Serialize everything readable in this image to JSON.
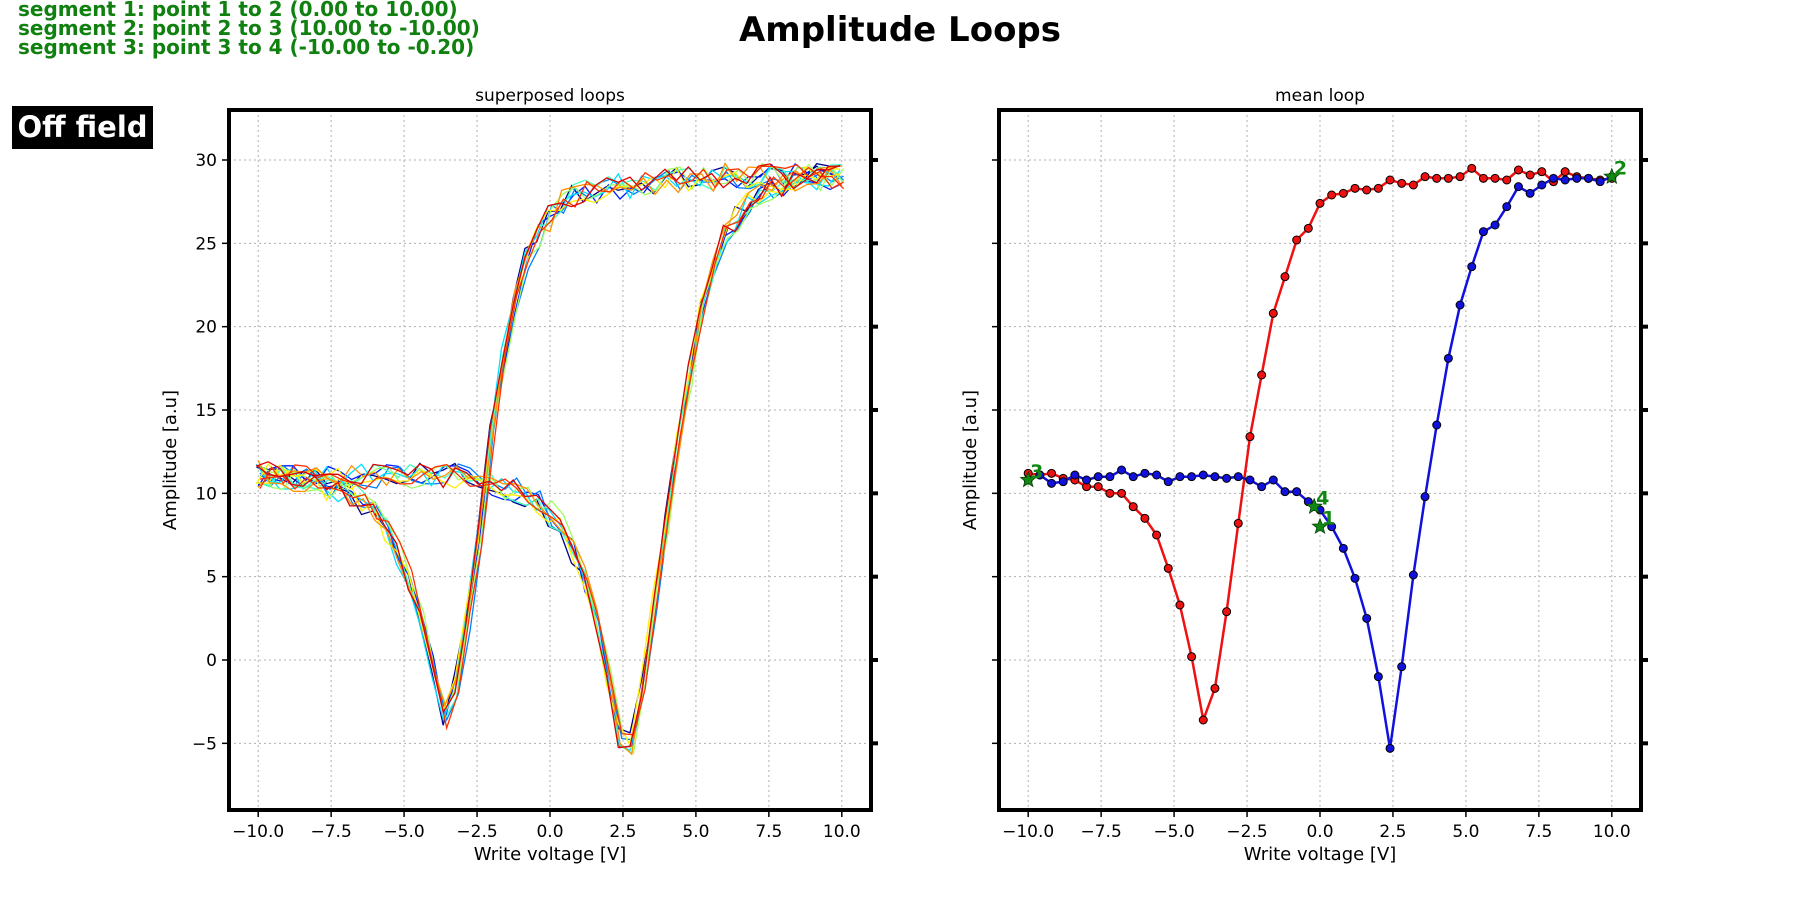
{
  "suptitle": "Amplitude Loops",
  "mode_badge": "Off field",
  "segments": [
    "segment 1: point 1 to 2 (0.00 to 10.00)",
    "segment 2: point 2 to 3 (10.00 to -10.00)",
    "segment 3: point 3 to 4 (-10.00 to -0.20)"
  ],
  "colors": {
    "text_green": "#108010",
    "red_branch": "#ee1111",
    "blue_branch": "#1111dd",
    "marker_green": "#118811",
    "grid": "#b0b0b0"
  },
  "chart_data": [
    {
      "type": "line",
      "title": "superposed loops",
      "xlabel": "Write voltage [V]",
      "ylabel": "Amplitude [a.u]",
      "xlim": [
        -11.0,
        11.0
      ],
      "ylim": [
        -9.0,
        33.0
      ],
      "xticks": [
        -10.0,
        -7.5,
        -5.0,
        -2.5,
        0.0,
        2.5,
        5.0,
        7.5,
        10.0
      ],
      "xtick_labels": [
        "−10.0",
        "−7.5",
        "−5.0",
        "−2.5",
        "0.0",
        "2.5",
        "5.0",
        "7.5",
        "10.0"
      ],
      "yticks": [
        -5,
        0,
        5,
        10,
        15,
        20,
        25,
        30
      ],
      "ytick_labels": [
        "−5",
        "0",
        "5",
        "10",
        "15",
        "20",
        "25",
        "30"
      ],
      "grid": true,
      "loop_colors": [
        "#00008f",
        "#0020ff",
        "#0080ff",
        "#00dfff",
        "#40ffbf",
        "#9fff60",
        "#ffef00",
        "#ff9000",
        "#ff3000",
        "#df0000"
      ],
      "base_branches": [
        {
          "name": "",
          "x": [
            -10.0,
            -9.6,
            -9.2,
            -8.8,
            -8.4,
            -8.0,
            -7.6,
            -7.2,
            -6.8,
            -6.4,
            -6.0,
            -5.6,
            -5.2,
            -4.8,
            -4.4,
            -4.0,
            -3.6,
            -3.2,
            -2.8,
            -2.4,
            -2.0,
            -1.6,
            -1.2,
            -0.8,
            -0.4,
            0.0,
            0.4,
            0.8,
            1.2,
            1.6,
            2.0,
            2.4,
            2.8,
            3.2,
            3.6,
            4.0,
            4.4,
            4.8,
            5.2,
            5.6,
            6.0,
            6.4,
            6.8,
            7.2,
            7.6,
            8.0,
            8.4,
            8.8,
            9.2,
            9.6,
            10.0
          ],
          "y": [
            11.2,
            11.1,
            11.0,
            10.9,
            10.8,
            10.6,
            10.3,
            10.3,
            10.0,
            9.5,
            8.8,
            7.8,
            6.5,
            4.6,
            2.4,
            -0.5,
            -3.5,
            -1.5,
            2.5,
            7.5,
            13.5,
            18.0,
            21.5,
            24.0,
            25.5,
            26.5,
            27.5,
            27.8,
            28.0,
            28.2,
            28.3,
            28.4,
            28.5,
            28.5,
            28.6,
            28.7,
            28.8,
            28.8,
            28.9,
            28.9,
            29.0,
            29.0,
            29.0,
            29.0,
            29.0,
            29.0,
            29.0,
            29.0,
            29.0,
            29.0,
            29.0
          ]
        },
        {
          "name": "",
          "x": [
            10.0,
            9.6,
            9.2,
            8.8,
            8.4,
            8.0,
            7.6,
            7.2,
            6.8,
            6.4,
            6.0,
            5.6,
            5.2,
            4.8,
            4.4,
            4.0,
            3.6,
            3.2,
            2.8,
            2.4,
            2.0,
            1.6,
            1.2,
            0.8,
            0.4,
            0.0,
            -0.4,
            -0.8,
            -1.2,
            -1.6,
            -2.0,
            -2.4,
            -2.8,
            -3.2,
            -3.6,
            -4.0,
            -4.4,
            -4.8,
            -5.2,
            -5.6,
            -6.0,
            -6.4,
            -6.8,
            -7.2,
            -7.6,
            -8.0,
            -8.4,
            -8.8,
            -9.2,
            -9.6,
            -10.0
          ],
          "y": [
            29.0,
            29.0,
            28.9,
            28.9,
            28.8,
            28.6,
            28.4,
            28.0,
            27.5,
            26.5,
            25.5,
            23.5,
            21.0,
            17.0,
            13.0,
            8.5,
            3.5,
            -1.5,
            -5.0,
            -4.5,
            -1.0,
            2.5,
            4.8,
            6.5,
            8.0,
            8.8,
            9.5,
            10.0,
            10.2,
            10.4,
            10.6,
            10.8,
            10.9,
            11.0,
            11.0,
            11.0,
            11.0,
            11.0,
            11.0,
            11.0,
            11.0,
            11.0,
            11.0,
            11.0,
            11.0,
            11.0,
            11.0,
            11.0,
            11.0,
            11.0,
            11.0
          ]
        }
      ]
    },
    {
      "type": "line",
      "title": "mean loop",
      "xlabel": "Write voltage [V]",
      "ylabel": "Amplitude [a.u]",
      "xlim": [
        -11.0,
        11.0
      ],
      "ylim": [
        -9.0,
        33.0
      ],
      "xticks": [
        -10.0,
        -7.5,
        -5.0,
        -2.5,
        0.0,
        2.5,
        5.0,
        7.5,
        10.0
      ],
      "xtick_labels": [
        "−10.0",
        "−7.5",
        "−5.0",
        "−2.5",
        "0.0",
        "2.5",
        "5.0",
        "7.5",
        "10.0"
      ],
      "yticks": [
        -5,
        0,
        5,
        10,
        15,
        20,
        25,
        30
      ],
      "grid": true,
      "series": [
        {
          "name": "",
          "color": "#ee1111",
          "x": [
            -10.0,
            -9.6,
            -9.2,
            -8.8,
            -8.4,
            -8.0,
            -7.6,
            -7.2,
            -6.8,
            -6.4,
            -6.0,
            -5.6,
            -5.2,
            -4.8,
            -4.4,
            -4.0,
            -3.6,
            -3.2,
            -2.8,
            -2.4,
            -2.0,
            -1.6,
            -1.2,
            -0.8,
            -0.4,
            0.0,
            0.4,
            0.8,
            1.2,
            1.6,
            2.0,
            2.4,
            2.8,
            3.2,
            3.6,
            4.0,
            4.4,
            4.8,
            5.2,
            5.6,
            6.0,
            6.4,
            6.8,
            7.2,
            7.6,
            8.0,
            8.4,
            8.8,
            9.2,
            9.6,
            10.0
          ],
          "y": [
            11.2,
            11.1,
            11.2,
            10.9,
            10.8,
            10.4,
            10.4,
            10.0,
            10.0,
            9.2,
            8.5,
            7.5,
            5.5,
            3.3,
            0.2,
            -3.6,
            -1.7,
            2.9,
            8.2,
            13.4,
            17.1,
            20.8,
            23.0,
            25.2,
            25.9,
            27.4,
            27.9,
            28.0,
            28.3,
            28.2,
            28.3,
            28.8,
            28.6,
            28.5,
            29.0,
            28.9,
            28.9,
            29.0,
            29.5,
            28.9,
            28.9,
            28.8,
            29.4,
            29.1,
            29.3,
            28.7,
            29.3,
            29.0,
            28.9,
            28.8,
            28.9
          ]
        },
        {
          "name": "",
          "color": "#1111dd",
          "x": [
            10.0,
            9.6,
            9.2,
            8.8,
            8.4,
            8.0,
            7.6,
            7.2,
            6.8,
            6.4,
            6.0,
            5.6,
            5.2,
            4.8,
            4.4,
            4.0,
            3.6,
            3.2,
            2.8,
            2.4,
            2.0,
            1.6,
            1.2,
            0.8,
            0.4,
            0.0,
            -0.4,
            -0.8,
            -1.2,
            -1.6,
            -2.0,
            -2.4,
            -2.8,
            -3.2,
            -3.6,
            -4.0,
            -4.4,
            -4.8,
            -5.2,
            -5.6,
            -6.0,
            -6.4,
            -6.8,
            -7.2,
            -7.6,
            -8.0,
            -8.4,
            -8.8,
            -9.2,
            -9.6,
            -10.0
          ],
          "y": [
            29.0,
            28.7,
            28.9,
            28.9,
            28.8,
            28.9,
            28.5,
            28.0,
            28.4,
            27.2,
            26.1,
            25.7,
            23.6,
            21.3,
            18.1,
            14.1,
            9.8,
            5.1,
            -0.4,
            -5.3,
            -1.0,
            2.5,
            4.9,
            6.7,
            8.0,
            9.0,
            9.5,
            10.1,
            10.1,
            10.8,
            10.4,
            10.8,
            11.0,
            10.9,
            11.0,
            11.1,
            11.0,
            11.0,
            10.7,
            11.1,
            11.2,
            11.0,
            11.4,
            11.0,
            11.0,
            10.8,
            11.1,
            10.7,
            10.6,
            11.1,
            10.8
          ]
        }
      ],
      "markers": [
        {
          "label": "1",
          "x": 0.0,
          "y": 8.0
        },
        {
          "label": "2",
          "x": 10.0,
          "y": 29.0
        },
        {
          "label": "3",
          "x": -10.0,
          "y": 10.8
        },
        {
          "label": "4",
          "x": -0.2,
          "y": 9.2
        }
      ]
    }
  ]
}
